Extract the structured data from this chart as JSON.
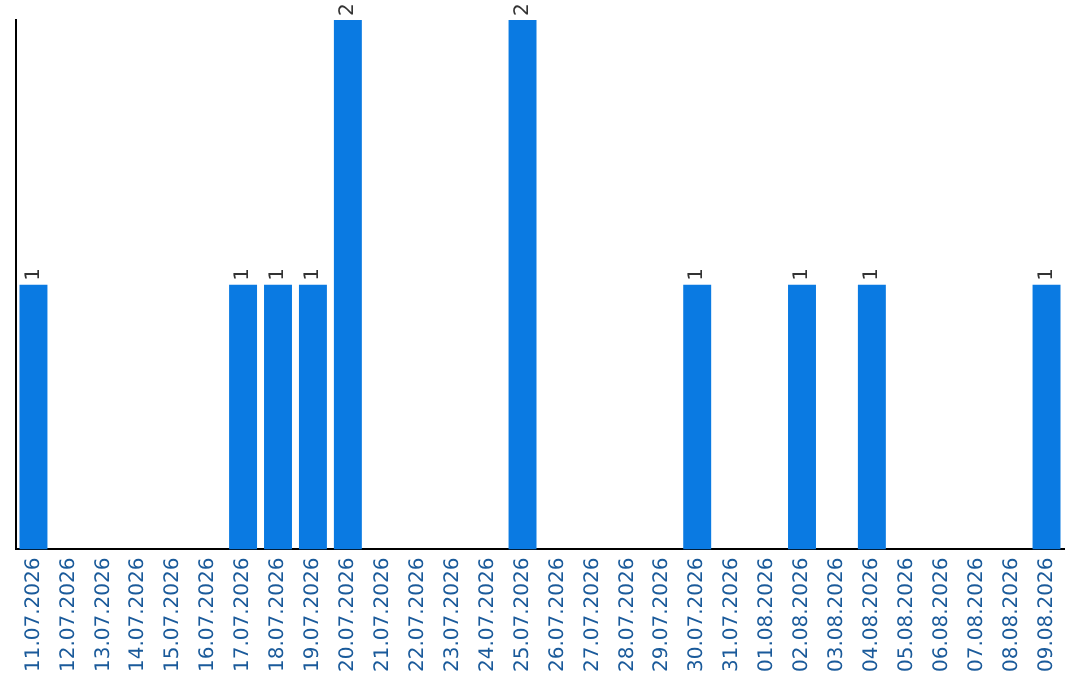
{
  "chart_data": {
    "type": "bar",
    "categories": [
      "11.07.2026",
      "12.07.2026",
      "13.07.2026",
      "14.07.2026",
      "15.07.2026",
      "16.07.2026",
      "17.07.2026",
      "18.07.2026",
      "19.07.2026",
      "20.07.2026",
      "21.07.2026",
      "22.07.2026",
      "23.07.2026",
      "24.07.2026",
      "25.07.2026",
      "26.07.2026",
      "27.07.2026",
      "28.07.2026",
      "29.07.2026",
      "30.07.2026",
      "31.07.2026",
      "01.08.2026",
      "02.08.2026",
      "03.08.2026",
      "04.08.2026",
      "05.08.2026",
      "06.08.2026",
      "07.08.2026",
      "08.08.2026",
      "09.08.2026"
    ],
    "values": [
      1,
      0,
      0,
      0,
      0,
      0,
      1,
      1,
      1,
      2,
      0,
      0,
      0,
      0,
      2,
      0,
      0,
      0,
      0,
      1,
      0,
      0,
      1,
      0,
      1,
      0,
      0,
      0,
      0,
      1
    ],
    "value_labels": [
      "1",
      null,
      null,
      null,
      null,
      null,
      "1",
      "1",
      "1",
      "2",
      null,
      null,
      null,
      null,
      "2",
      null,
      null,
      null,
      null,
      "1",
      null,
      null,
      "1",
      null,
      "1",
      null,
      null,
      null,
      null,
      "1"
    ],
    "color": "#0a7ae2",
    "grid": false,
    "legend": false
  }
}
